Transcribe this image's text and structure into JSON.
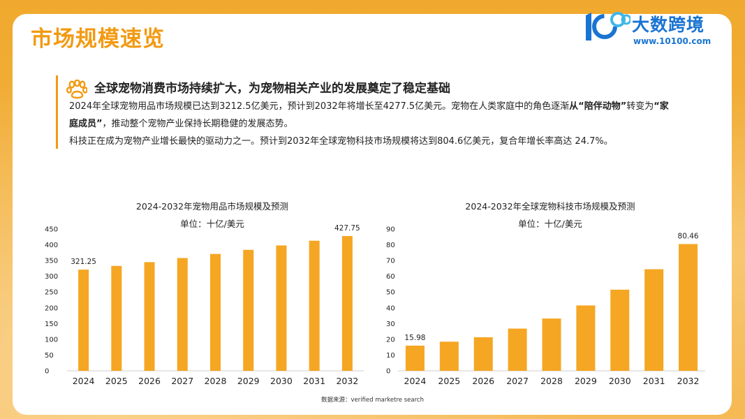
{
  "page": {
    "title": "市场规模速览",
    "logo_name": "大数跨境",
    "logo_url": "www.10100.com",
    "source": "数据来源：verified marketre search"
  },
  "summary": {
    "headline": "全球宠物消费市场持续扩大，为宠物相关产业的发展奠定了稳定基础",
    "p1_a": "2024年全球宠物用品市场规模已达到3212.5亿美元，预计到2032年将增长至4277.5亿美元。宠物在人类家庭中的角色逐渐",
    "p1_b1": "从“陪伴动物”",
    "p1_c": "转变为",
    "p1_b2": "“家庭成员”",
    "p1_d": "，推动整个宠物产业保持长期稳健的发展态势。",
    "p2": "科技正在成为宠物产业增长最快的驱动力之一。预计到2032年全球宠物科技市场规模将达到804.6亿美元，复合年增长率高达 24.7%。"
  },
  "colors": {
    "accent": "#f29a12",
    "bar": "#f5a623",
    "brand": "#1a74d1"
  },
  "chart_data": [
    {
      "type": "bar",
      "title": "2024-2032年宠物用品市场规模及预测",
      "unit": "单位：十亿/美元",
      "categories": [
        "2024",
        "2025",
        "2026",
        "2027",
        "2028",
        "2029",
        "2030",
        "2031",
        "2032"
      ],
      "values": [
        321.25,
        333,
        345,
        358,
        371,
        384,
        398,
        413,
        427.75
      ],
      "labels": {
        "0": "321.25",
        "8": "427.75"
      },
      "ylim": [
        0,
        450
      ],
      "yticks": [
        "0",
        "50",
        "100",
        "150",
        "200",
        "250",
        "300",
        "350",
        "400",
        "450"
      ]
    },
    {
      "type": "bar",
      "title": "2024-2032年全球宠物科技市场规模及预测",
      "unit": "单位：十亿/美元",
      "categories": [
        "2024",
        "2025",
        "2026",
        "2027",
        "2028",
        "2029",
        "2030",
        "2031",
        "2032"
      ],
      "values": [
        15.98,
        18.5,
        21.3,
        26.8,
        33.2,
        41.5,
        51.5,
        64.5,
        80.46
      ],
      "labels": {
        "0": "15.98",
        "8": "80.46"
      },
      "ylim": [
        0,
        90
      ],
      "yticks": [
        "0",
        "10",
        "20",
        "30",
        "40",
        "50",
        "60",
        "70",
        "80",
        "90"
      ]
    }
  ]
}
